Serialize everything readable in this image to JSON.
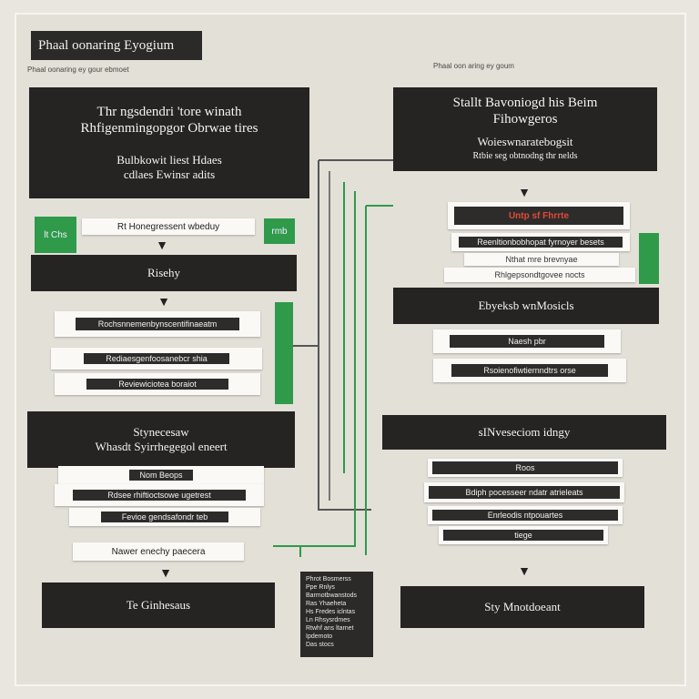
{
  "title": "Phaal oonaring Eyogium",
  "header_notes": {
    "left": "Phaal oonaring ey gour ebmoet",
    "right": "Phaal oon aring ey goum"
  },
  "left_column": {
    "top_box": {
      "line1": "Thr ngsdendri 'tore winath",
      "line2": "Rhfigenmingopgor Obrwae tires",
      "line3": "Bulbkowit liest Hdaes",
      "line4": "cdlaes Ewinsr adits"
    },
    "green_tag": "lt Chs",
    "green_tag_right": "rmb",
    "white_bar": "Rt Honegressent wbeduy",
    "box2": "Risehy",
    "rows_a": [
      "Rochsnnemenbynscentifinaeatm",
      "Rediaesgenfoosanebcr shia",
      "Reviewiciotea boraiot"
    ],
    "box3": {
      "line1": "Stynecesaw",
      "line2": "Whasdt Syirrhegegol eneert"
    },
    "rows_b": [
      "Nom Beops",
      "Rdsee rhiftioctsowe ugetrest",
      "Fevioe gendsafondr teb"
    ],
    "white_bar2": "Nawer enechy paecera",
    "bottom_box": "Te Ginhesaus"
  },
  "right_column": {
    "top_box": {
      "line1": "Stallt Bavoniogd his Beim",
      "line2": "Fihowgeros",
      "line3": "Woieswnaratebogsit",
      "line4": "Rtbie seg obtnodng thr nelds"
    },
    "red_bar": "Untp sf Fhrrte",
    "rows_a": [
      "Reenltionbobhopat fyrnoyer besets",
      "Nthat mre brevnyae",
      "Rhlgepsondtgovee nocts"
    ],
    "box2": "Ebyeksb wnMosicls",
    "rows_b": [
      "Naesh pbr",
      "Rsoienofiwtiernndtrs orse"
    ],
    "box3": "sINveseciom idngy",
    "rows_c": [
      "Roos",
      "Bdiph pocesseer ndatr atrieleats",
      "Enrleodis ntpouartes",
      "tiege"
    ],
    "bottom_box": "Sty Mnotdoeant"
  },
  "legend": {
    "lines": [
      "Phrot Bosmerss",
      "Ppe Rnlys",
      "Barmotbwanstods",
      "Ras Yhaeheta",
      "Hs Fredes iclntas",
      "Ln Rhsysrdmes",
      "Rtwhf ans ltarnet",
      "Ipdemoto",
      "Das stocs"
    ]
  },
  "colors": {
    "accent": "#2f9a4a",
    "dark": "#252423",
    "alert": "#e14a3a",
    "background": "#e9e6df"
  }
}
